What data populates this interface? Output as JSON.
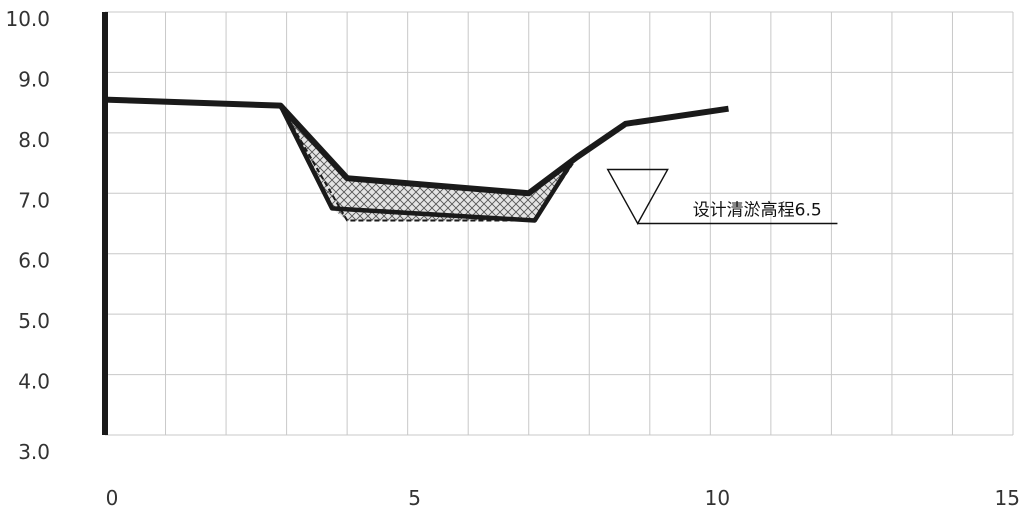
{
  "chart_data": {
    "type": "line",
    "title": "",
    "xlabel": "",
    "ylabel": "",
    "xlim": [
      0,
      15
    ],
    "ylim": [
      3.0,
      10.0
    ],
    "grid": true,
    "x_ticks": [
      {
        "value": 0,
        "label": "0"
      },
      {
        "value": 5,
        "label": "5"
      },
      {
        "value": 10,
        "label": "10"
      },
      {
        "value": 15,
        "label": "15"
      }
    ],
    "y_ticks": [
      {
        "value": 10,
        "label": "10.0"
      },
      {
        "value": 9,
        "label": "9.0"
      },
      {
        "value": 8,
        "label": "8.0"
      },
      {
        "value": 7,
        "label": "7.0"
      },
      {
        "value": 6,
        "label": "6.0"
      },
      {
        "value": 5,
        "label": "5.0"
      },
      {
        "value": 4,
        "label": "4.0"
      },
      {
        "value": 3,
        "label": "3.0"
      }
    ],
    "series": [
      {
        "values": [
          {
            "x": 0,
            "y": 8.55
          },
          {
            "x": 2.9,
            "y": 8.45
          },
          {
            "x": 4.0,
            "y": 7.25
          },
          {
            "x": 7.0,
            "y": 7.0
          },
          {
            "x": 7.8,
            "y": 7.6
          },
          {
            "x": 8.6,
            "y": 8.15
          },
          {
            "x": 10.3,
            "y": 8.4
          }
        ]
      },
      {
        "values": [
          {
            "x": 2.9,
            "y": 8.45
          },
          {
            "x": 3.75,
            "y": 6.75
          },
          {
            "x": 7.1,
            "y": 6.55
          },
          {
            "x": 7.7,
            "y": 7.5
          }
        ]
      },
      {
        "values": [
          {
            "x": 2.9,
            "y": 8.45
          },
          {
            "x": 4.0,
            "y": 6.55
          },
          {
            "x": 7.1,
            "y": 6.55
          },
          {
            "x": 7.8,
            "y": 7.6
          }
        ]
      }
    ],
    "filled_region": {
      "pattern": "crosshatch",
      "polygon": [
        {
          "x": 2.9,
          "y": 8.45
        },
        {
          "x": 4.0,
          "y": 7.25
        },
        {
          "x": 7.0,
          "y": 7.0
        },
        {
          "x": 7.8,
          "y": 7.6
        },
        {
          "x": 7.1,
          "y": 6.55
        },
        {
          "x": 4.0,
          "y": 6.55
        },
        {
          "x": 3.75,
          "y": 6.75
        }
      ]
    },
    "vertical_axis_line": {
      "x": 0,
      "y_from": 3.0,
      "y_to": 10.0
    },
    "annotation": {
      "text": "设计清淤高程6.5",
      "marker": "water-level-triangle",
      "x": 8.8,
      "y": 6.5,
      "line_to_x": 12.1
    }
  }
}
